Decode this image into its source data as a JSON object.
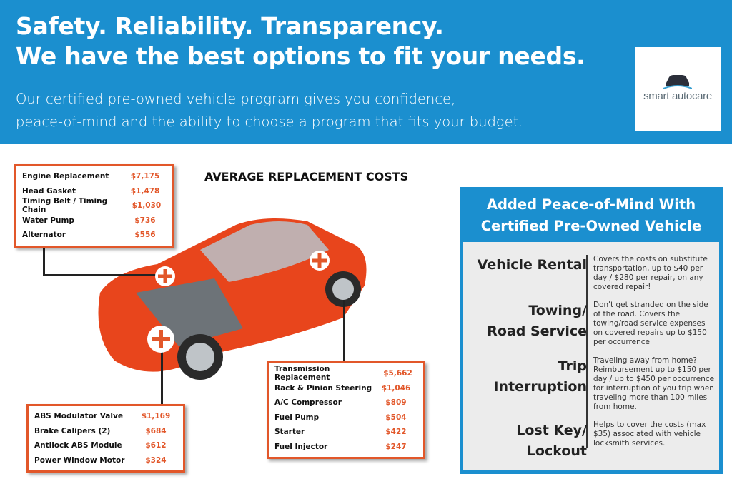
{
  "header": {
    "headline_1": "Safety. Reliability. Transparency.",
    "headline_2": "We have the best options to fit your needs.",
    "subtext_1": "Our certified pre-owned vehicle program gives you confidence,",
    "subtext_2": "peace-of-mind and the ability to choose a program that fits your budget."
  },
  "logo": {
    "text": "smart autocare",
    "icon": "car-icon"
  },
  "title": "AVERAGE REPLACEMENT COSTS",
  "costs_engine": [
    {
      "part": "Engine Replacement",
      "price": "$7,175"
    },
    {
      "part": "Head Gasket",
      "price": "$1,478"
    },
    {
      "part": "Timing Belt / Timing Chain",
      "price": "$1,030"
    },
    {
      "part": "Water Pump",
      "price": "$736"
    },
    {
      "part": "Alternator",
      "price": "$556"
    }
  ],
  "costs_transmission": [
    {
      "part": "Transmission Replacement",
      "price": "$5,662"
    },
    {
      "part": "Rack & Pinion Steering",
      "price": "$1,046"
    },
    {
      "part": "A/C Compressor",
      "price": "$809"
    },
    {
      "part": "Fuel Pump",
      "price": "$504"
    },
    {
      "part": "Starter",
      "price": "$422"
    },
    {
      "part": "Fuel Injector",
      "price": "$247"
    }
  ],
  "costs_brakes": [
    {
      "part": "ABS Modulator Valve",
      "price": "$1,169"
    },
    {
      "part": "Brake Calipers (2)",
      "price": "$684"
    },
    {
      "part": "Antilock ABS Module",
      "price": "$612"
    },
    {
      "part": "Power Window Motor",
      "price": "$324"
    }
  ],
  "panel": {
    "title_1": "Added Peace-of-Mind With",
    "title_2": "Certified Pre-Owned Vehicle",
    "items": [
      {
        "k1": "Vehicle Rental",
        "k2": "",
        "desc": "Covers the costs on substitute transportation, up to $40 per day / $280 per repair, on any covered repair!"
      },
      {
        "k1": "Towing/",
        "k2": "Road Service",
        "desc": "Don't get stranded on the side of the road. Covers the towing/road service expenses on covered repairs up to $150 per occurrence"
      },
      {
        "k1": "Trip",
        "k2": "Interruption",
        "desc": "Traveling away from home? Reimbursement up to $150 per day / up to $450 per occurrence for interruption of you trip when traveling more than 100 miles from home."
      },
      {
        "k1": "Lost Key/",
        "k2": "Lockout",
        "desc": "Helps to cover the costs (max $35) associated with vehicle locksmith services."
      }
    ]
  },
  "colors": {
    "blue": "#1b8fcf",
    "orange": "#e2572a",
    "car": "#e8451c"
  }
}
